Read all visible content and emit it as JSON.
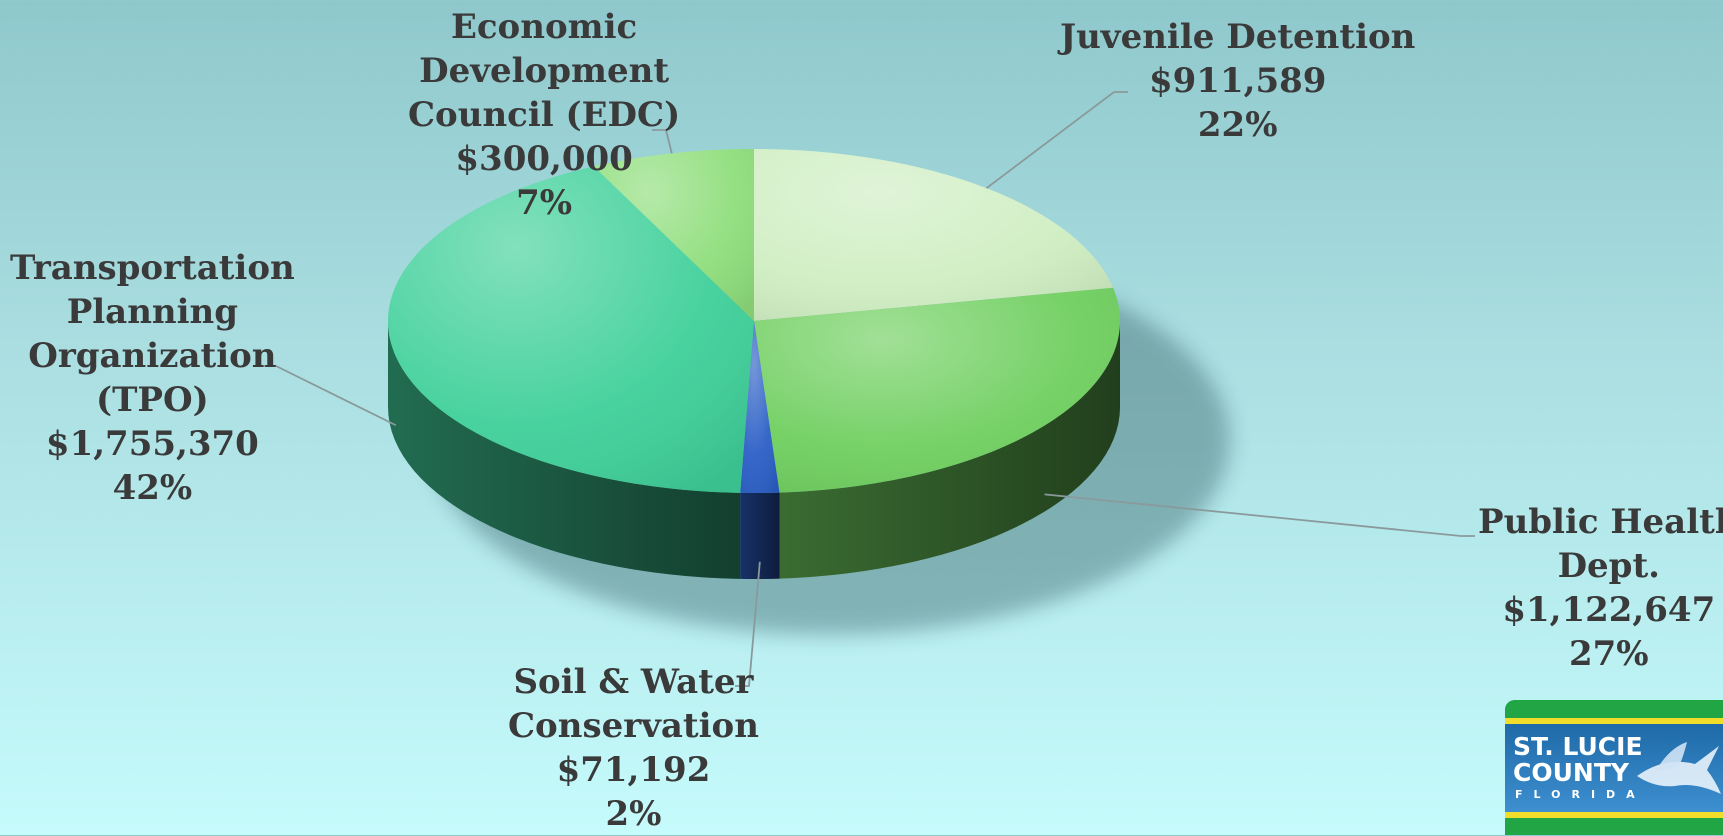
{
  "chart_data": {
    "type": "pie",
    "title": "",
    "slices": [
      {
        "label_lines": [
          "Juvenile Detention"
        ],
        "amount": "$911,589",
        "percent": "22%",
        "value": 911589,
        "color": "#cfeec2"
      },
      {
        "label_lines": [
          "Public Health",
          "Dept."
        ],
        "amount": "$1,122,647",
        "percent": "27%",
        "value": 1122647,
        "color": "#6fcf5f"
      },
      {
        "label_lines": [
          "Soil & Water",
          "Conservation"
        ],
        "amount": "$71,192",
        "percent": "2%",
        "value": 71192,
        "color": "#2b5fc6"
      },
      {
        "label_lines": [
          "Transportation",
          "Planning",
          "Organization",
          "(TPO)"
        ],
        "amount": "$1,755,370",
        "percent": "42%",
        "value": 1755370,
        "color": "#3fd09a"
      },
      {
        "label_lines": [
          "Economic",
          "Development",
          "Council (EDC)"
        ],
        "amount": "$300,000",
        "percent": "7%",
        "value": 300000,
        "color": "#8fde7c"
      }
    ]
  },
  "logo": {
    "line1": "ST. LUCIE",
    "line2": "COUNTY",
    "line3": "FLORIDA"
  }
}
